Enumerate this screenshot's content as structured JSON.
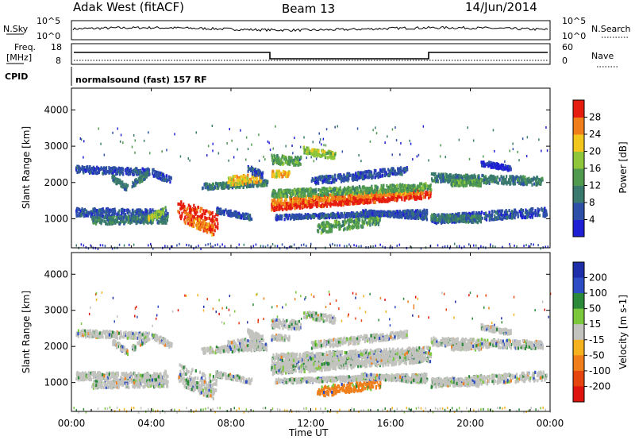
{
  "header": {
    "station": "Adak West (fitACF)",
    "beam": "Beam 13",
    "date": "14/Jun/2014"
  },
  "top_panels": {
    "nsky_label": "N.Sky",
    "nsky_ticks": [
      "10^5",
      "10^0"
    ],
    "nsearch_label": "N.Search",
    "nsearch_ticks": [
      "10^5",
      "10^0"
    ],
    "freq_label": "Freq.",
    "freq_unit": "[MHz]",
    "freq_ticks": [
      "18",
      "8"
    ],
    "nave_label": "Nave",
    "nave_ticks": [
      "60",
      "0"
    ],
    "cpid_label": "CPID",
    "cpid_value": "normalsound (fast) 157 RF"
  },
  "colors": {
    "power": [
      "#1f1fd6",
      "#2e4fa8",
      "#3a7a6e",
      "#4f9a4f",
      "#8fc63a",
      "#f3c61e",
      "#f07e1a",
      "#e51c0e"
    ],
    "velocity": [
      "#1e2ea8",
      "#2e4cc4",
      "#2a8a3a",
      "#7cc83c",
      "#c2c2be",
      "#f5b21e",
      "#f07e1a",
      "#e5440e",
      "#e0140e"
    ]
  },
  "chart_data": [
    {
      "type": "heatmap",
      "title": "Power",
      "ylabel": "Slant Range [km]",
      "xlabel": "Time UT",
      "xlim": [
        "00:00",
        "24:00"
      ],
      "ylim": [
        200,
        4600
      ],
      "x_ticks": [
        "00:00",
        "04:00",
        "08:00",
        "12:00",
        "16:00",
        "20:00",
        "00:00"
      ],
      "y_ticks": [
        1000,
        2000,
        3000,
        4000
      ],
      "colorbar": {
        "label": "Power [dB]",
        "ticks": [
          "4",
          "8",
          "12",
          "16",
          "20",
          "24",
          "28"
        ],
        "range": [
          0,
          30
        ]
      }
    },
    {
      "type": "heatmap",
      "title": "Velocity",
      "ylabel": "Slant Range [km]",
      "xlabel": "Time UT",
      "xlim": [
        "00:00",
        "24:00"
      ],
      "ylim": [
        200,
        4600
      ],
      "x_ticks": [
        "00:00",
        "04:00",
        "08:00",
        "12:00",
        "16:00",
        "20:00",
        "00:00"
      ],
      "y_ticks": [
        1000,
        2000,
        3000,
        4000
      ],
      "colorbar": {
        "label": "Velocity [m s-1]",
        "ticks": [
          "200",
          "100",
          "50",
          "15",
          "-15",
          "-50",
          "-100",
          "-200"
        ],
        "range": [
          -250,
          250
        ]
      }
    }
  ]
}
